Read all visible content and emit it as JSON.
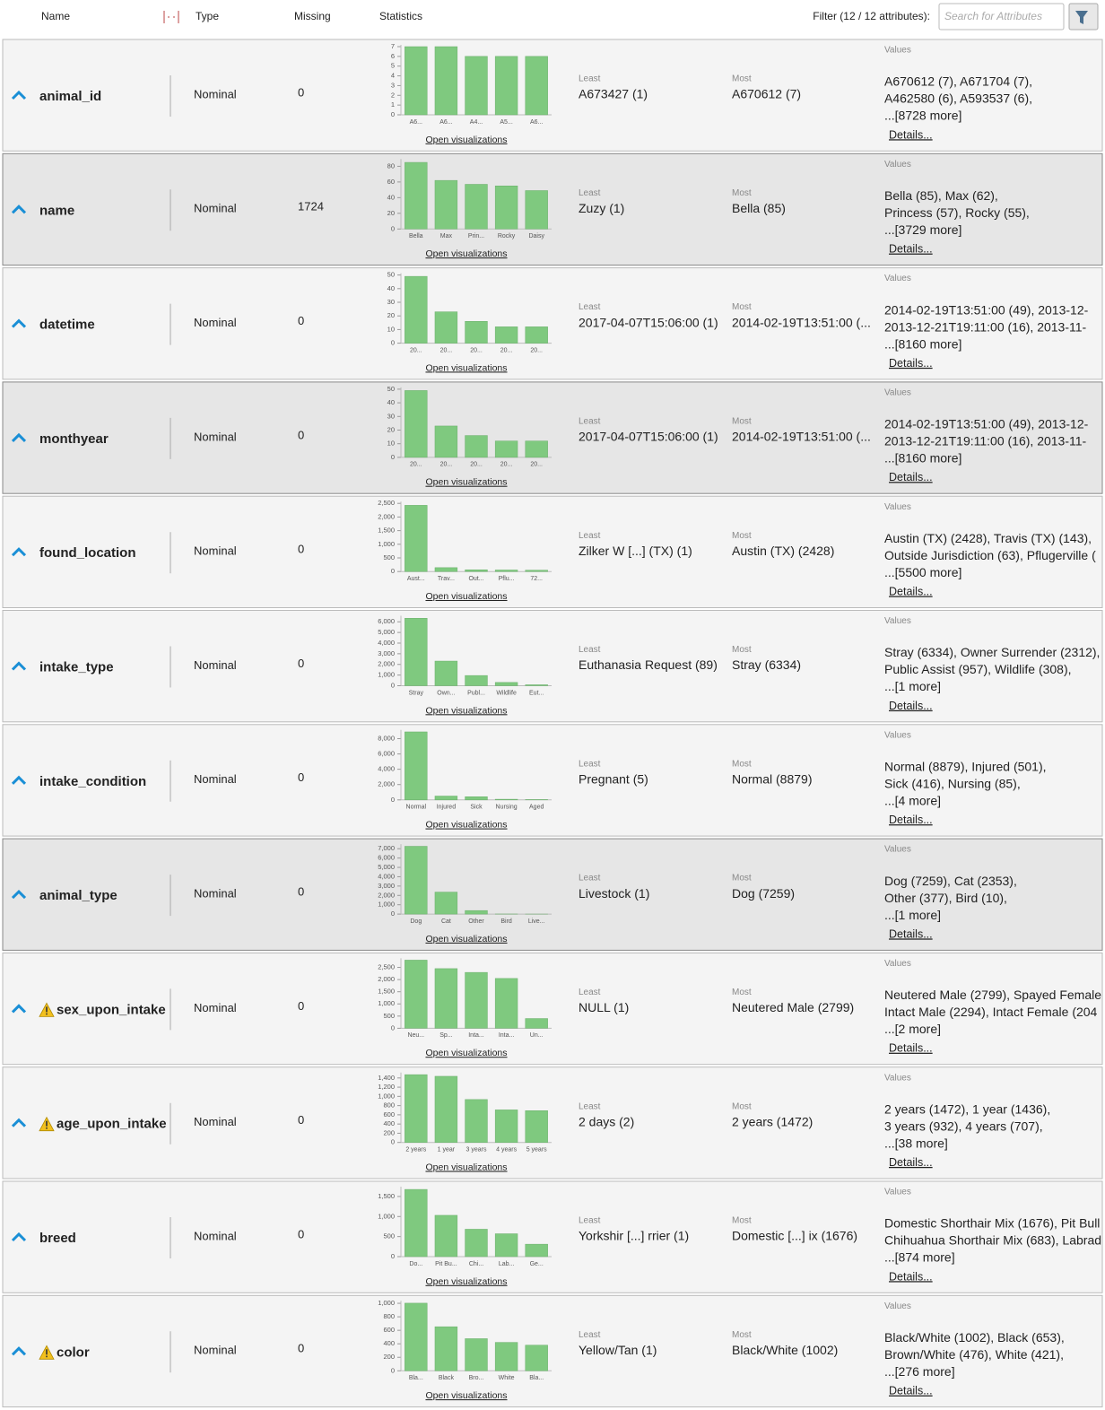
{
  "header": {
    "name": "Name",
    "type": "Type",
    "missing": "Missing",
    "statistics": "Statistics",
    "filter": "Filter (12 / 12 attributes):",
    "search_placeholder": "Search for Attributes"
  },
  "rows": [
    {
      "name": "animal_id",
      "type": "Nominal",
      "missing": "0",
      "least_label": "Least",
      "least": "A673427 (1)",
      "most_label": "Most",
      "most": "A670612 (7)",
      "values_label": "Values",
      "values_lines": [
        "A670612 (7), A671704 (7),",
        "A462580 (6), A593537 (6),",
        "...[8728 more]"
      ],
      "details": "Details...",
      "open_visualizations": "Open visualizations",
      "warning": false,
      "highlighted": false,
      "chart": {
        "type": "bar",
        "color": "#7fc97f",
        "categories": [
          "A6...",
          "A6...",
          "A4...",
          "A5...",
          "A6..."
        ],
        "values": [
          7,
          7,
          6,
          6,
          6
        ],
        "ylim": [
          0,
          7
        ],
        "yticks": [
          0,
          1,
          2,
          3,
          4,
          5,
          6,
          7
        ]
      }
    },
    {
      "name": "name",
      "type": "Nominal",
      "missing": "1724",
      "least_label": "Least",
      "least": "Zuzy (1)",
      "most_label": "Most",
      "most": "Bella (85)",
      "values_label": "Values",
      "values_lines": [
        "Bella (85), Max (62),",
        "Princess (57), Rocky (55),",
        "...[3729 more]"
      ],
      "details": "Details...",
      "open_visualizations": "Open visualizations",
      "warning": false,
      "highlighted": true,
      "chart": {
        "type": "bar",
        "color": "#7fc97f",
        "categories": [
          "Bella",
          "Max",
          "Prin...",
          "Rocky",
          "Daisy"
        ],
        "values": [
          85,
          62,
          57,
          55,
          49
        ],
        "ylim": [
          0,
          87
        ],
        "yticks": [
          0,
          20,
          40,
          60,
          80
        ]
      }
    },
    {
      "name": "datetime",
      "type": "Nominal",
      "missing": "0",
      "least_label": "Least",
      "least": "2017-04-07T15:06:00 (1)",
      "most_label": "Most",
      "most": "2014-02-19T13:51:00 (...",
      "values_label": "Values",
      "values_lines": [
        "2014-02-19T13:51:00 (49), 2013-12-",
        "2013-12-21T19:11:00 (16), 2013-11-",
        "...[8160 more]"
      ],
      "details": "Details...",
      "open_visualizations": "Open visualizations",
      "warning": false,
      "highlighted": false,
      "chart": {
        "type": "bar",
        "color": "#7fc97f",
        "categories": [
          "20...",
          "20...",
          "20...",
          "20...",
          "20..."
        ],
        "values": [
          49,
          23,
          16,
          12,
          12
        ],
        "ylim": [
          0,
          50
        ],
        "yticks": [
          0,
          10,
          20,
          30,
          40,
          50
        ]
      }
    },
    {
      "name": "monthyear",
      "type": "Nominal",
      "missing": "0",
      "least_label": "Least",
      "least": "2017-04-07T15:06:00 (1)",
      "most_label": "Most",
      "most": "2014-02-19T13:51:00 (...",
      "values_label": "Values",
      "values_lines": [
        "2014-02-19T13:51:00 (49), 2013-12-",
        "2013-12-21T19:11:00 (16), 2013-11-",
        "...[8160 more]"
      ],
      "details": "Details...",
      "open_visualizations": "Open visualizations",
      "warning": false,
      "highlighted": true,
      "chart": {
        "type": "bar",
        "color": "#7fc97f",
        "categories": [
          "20...",
          "20...",
          "20...",
          "20...",
          "20..."
        ],
        "values": [
          49,
          23,
          16,
          12,
          12
        ],
        "ylim": [
          0,
          50
        ],
        "yticks": [
          0,
          10,
          20,
          30,
          40,
          50
        ]
      }
    },
    {
      "name": "found_location",
      "type": "Nominal",
      "missing": "0",
      "least_label": "Least",
      "least": "Zilker W [...]  (TX) (1)",
      "most_label": "Most",
      "most": "Austin (TX) (2428)",
      "values_label": "Values",
      "values_lines": [
        "Austin (TX) (2428), Travis (TX) (143),",
        "Outside Jurisdiction (63), Pflugerville (",
        "...[5500 more]"
      ],
      "details": "Details...",
      "open_visualizations": "Open visualizations",
      "warning": false,
      "highlighted": false,
      "chart": {
        "type": "bar",
        "color": "#7fc97f",
        "categories": [
          "Aust...",
          "Trav...",
          "Out...",
          "Pflu...",
          "72..."
        ],
        "values": [
          2428,
          143,
          63,
          56,
          50
        ],
        "ylim": [
          0,
          2500
        ],
        "yticks": [
          0,
          500,
          {
            "value": 1000,
            "label": "1,000"
          },
          {
            "value": 1500,
            "label": "1,500"
          },
          {
            "value": 2000,
            "label": "2,000"
          },
          {
            "value": 2500,
            "label": "2,500"
          }
        ]
      }
    },
    {
      "name": "intake_type",
      "type": "Nominal",
      "missing": "0",
      "least_label": "Least",
      "least": "Euthanasia Request (89)",
      "most_label": "Most",
      "most": "Stray (6334)",
      "values_label": "Values",
      "values_lines": [
        "Stray (6334), Owner Surrender (2312),",
        "Public Assist (957), Wildlife (308),",
        "...[1 more]"
      ],
      "details": "Details...",
      "open_visualizations": "Open visualizations",
      "warning": false,
      "highlighted": false,
      "chart": {
        "type": "bar",
        "color": "#7fc97f",
        "categories": [
          "Stray",
          "Own...",
          "Publ...",
          "Wildlife",
          "Eut..."
        ],
        "values": [
          6334,
          2312,
          957,
          308,
          89
        ],
        "ylim": [
          0,
          6400
        ],
        "yticks": [
          0,
          {
            "value": 1000,
            "label": "1,000"
          },
          {
            "value": 2000,
            "label": "2,000"
          },
          {
            "value": 3000,
            "label": "3,000"
          },
          {
            "value": 4000,
            "label": "4,000"
          },
          {
            "value": 5000,
            "label": "5,000"
          },
          {
            "value": 6000,
            "label": "6,000"
          }
        ]
      }
    },
    {
      "name": "intake_condition",
      "type": "Nominal",
      "missing": "0",
      "least_label": "Least",
      "least": "Pregnant (5)",
      "most_label": "Most",
      "most": "Normal (8879)",
      "values_label": "Values",
      "values_lines": [
        "Normal (8879), Injured (501),",
        "Sick (416), Nursing (85),",
        "...[4 more]"
      ],
      "details": "Details...",
      "open_visualizations": "Open visualizations",
      "warning": false,
      "highlighted": false,
      "chart": {
        "type": "bar",
        "color": "#7fc97f",
        "categories": [
          "Normal",
          "Injured",
          "Sick",
          "Nursing",
          "Aged"
        ],
        "values": [
          8879,
          501,
          416,
          85,
          40
        ],
        "ylim": [
          0,
          8900
        ],
        "yticks": [
          0,
          {
            "value": 2000,
            "label": "2,000"
          },
          {
            "value": 4000,
            "label": "4,000"
          },
          {
            "value": 6000,
            "label": "6,000"
          },
          {
            "value": 8000,
            "label": "8,000"
          }
        ]
      }
    },
    {
      "name": "animal_type",
      "type": "Nominal",
      "missing": "0",
      "least_label": "Least",
      "least": "Livestock (1)",
      "most_label": "Most",
      "most": "Dog (7259)",
      "values_label": "Values",
      "values_lines": [
        "Dog (7259), Cat (2353),",
        "Other (377), Bird (10),",
        "...[1 more]"
      ],
      "details": "Details...",
      "open_visualizations": "Open visualizations",
      "warning": false,
      "highlighted": true,
      "chart": {
        "type": "bar",
        "color": "#7fc97f",
        "categories": [
          "Dog",
          "Cat",
          "Other",
          "Bird",
          "Live..."
        ],
        "values": [
          7259,
          2353,
          377,
          10,
          1
        ],
        "ylim": [
          0,
          7300
        ],
        "yticks": [
          0,
          {
            "value": 1000,
            "label": "1,000"
          },
          {
            "value": 2000,
            "label": "2,000"
          },
          {
            "value": 3000,
            "label": "3,000"
          },
          {
            "value": 4000,
            "label": "4,000"
          },
          {
            "value": 5000,
            "label": "5,000"
          },
          {
            "value": 6000,
            "label": "6,000"
          },
          {
            "value": 7000,
            "label": "7,000"
          }
        ]
      }
    },
    {
      "name": "sex_upon_intake",
      "type": "Nominal",
      "missing": "0",
      "least_label": "Least",
      "least": "NULL (1)",
      "most_label": "Most",
      "most": "Neutered Male (2799)",
      "values_label": "Values",
      "values_lines": [
        "Neutered Male (2799), Spayed Female",
        "Intact Male (2294), Intact Female (204",
        "...[2 more]"
      ],
      "details": "Details...",
      "open_visualizations": "Open visualizations",
      "warning": true,
      "highlighted": false,
      "chart": {
        "type": "bar",
        "color": "#7fc97f",
        "categories": [
          "Neu...",
          "Sp...",
          "Inta...",
          "Inta...",
          "Un..."
        ],
        "values": [
          2799,
          2450,
          2294,
          2046,
          400
        ],
        "ylim": [
          0,
          2800
        ],
        "yticks": [
          0,
          500,
          {
            "value": 1000,
            "label": "1,000"
          },
          {
            "value": 1500,
            "label": "1,500"
          },
          {
            "value": 2000,
            "label": "2,000"
          },
          {
            "value": 2500,
            "label": "2,500"
          }
        ]
      }
    },
    {
      "name": "age_upon_intake",
      "type": "Nominal",
      "missing": "0",
      "least_label": "Least",
      "least": "2 days (2)",
      "most_label": "Most",
      "most": "2 years (1472)",
      "values_label": "Values",
      "values_lines": [
        "2 years (1472), 1 year (1436),",
        "3 years (932), 4 years (707),",
        "...[38 more]"
      ],
      "details": "Details...",
      "open_visualizations": "Open visualizations",
      "warning": true,
      "highlighted": false,
      "chart": {
        "type": "bar",
        "color": "#7fc97f",
        "categories": [
          "2 years",
          "1 year",
          "3 years",
          "4 years",
          "5 years"
        ],
        "values": [
          1472,
          1436,
          932,
          707,
          690
        ],
        "ylim": [
          0,
          1480
        ],
        "yticks": [
          0,
          200,
          400,
          600,
          800,
          {
            "value": 1000,
            "label": "1,000"
          },
          {
            "value": 1200,
            "label": "1,200"
          },
          {
            "value": 1400,
            "label": "1,400"
          }
        ]
      }
    },
    {
      "name": "breed",
      "type": "Nominal",
      "missing": "0",
      "least_label": "Least",
      "least": "Yorkshir [...] rrier (1)",
      "most_label": "Most",
      "most": "Domestic [...] ix (1676)",
      "values_label": "Values",
      "values_lines": [
        "Domestic Shorthair Mix (1676), Pit Bull",
        "Chihuahua Shorthair Mix (683), Labrad",
        "...[874 more]"
      ],
      "details": "Details...",
      "open_visualizations": "Open visualizations",
      "warning": false,
      "highlighted": false,
      "chart": {
        "type": "bar",
        "color": "#7fc97f",
        "categories": [
          "Do...",
          "Pit Bu...",
          "Chi...",
          "Lab...",
          "Ge..."
        ],
        "values": [
          1676,
          1030,
          683,
          570,
          310
        ],
        "ylim": [
          0,
          1700
        ],
        "yticks": [
          0,
          500,
          {
            "value": 1000,
            "label": "1,000"
          },
          {
            "value": 1500,
            "label": "1,500"
          }
        ]
      }
    },
    {
      "name": "color",
      "type": "Nominal",
      "missing": "0",
      "least_label": "Least",
      "least": "Yellow/Tan (1)",
      "most_label": "Most",
      "most": "Black/White (1002)",
      "values_label": "Values",
      "values_lines": [
        "Black/White (1002), Black (653),",
        "Brown/White (476), White (421),",
        "...[276 more]"
      ],
      "details": "Details...",
      "open_visualizations": "Open visualizations",
      "warning": true,
      "highlighted": false,
      "chart": {
        "type": "bar",
        "color": "#7fc97f",
        "categories": [
          "Bla...",
          "Black",
          "Bro...",
          "White",
          "Bla..."
        ],
        "values": [
          1002,
          653,
          476,
          421,
          380
        ],
        "ylim": [
          0,
          1010
        ],
        "yticks": [
          0,
          200,
          400,
          600,
          800,
          {
            "value": 1000,
            "label": "1,000"
          }
        ]
      }
    }
  ]
}
